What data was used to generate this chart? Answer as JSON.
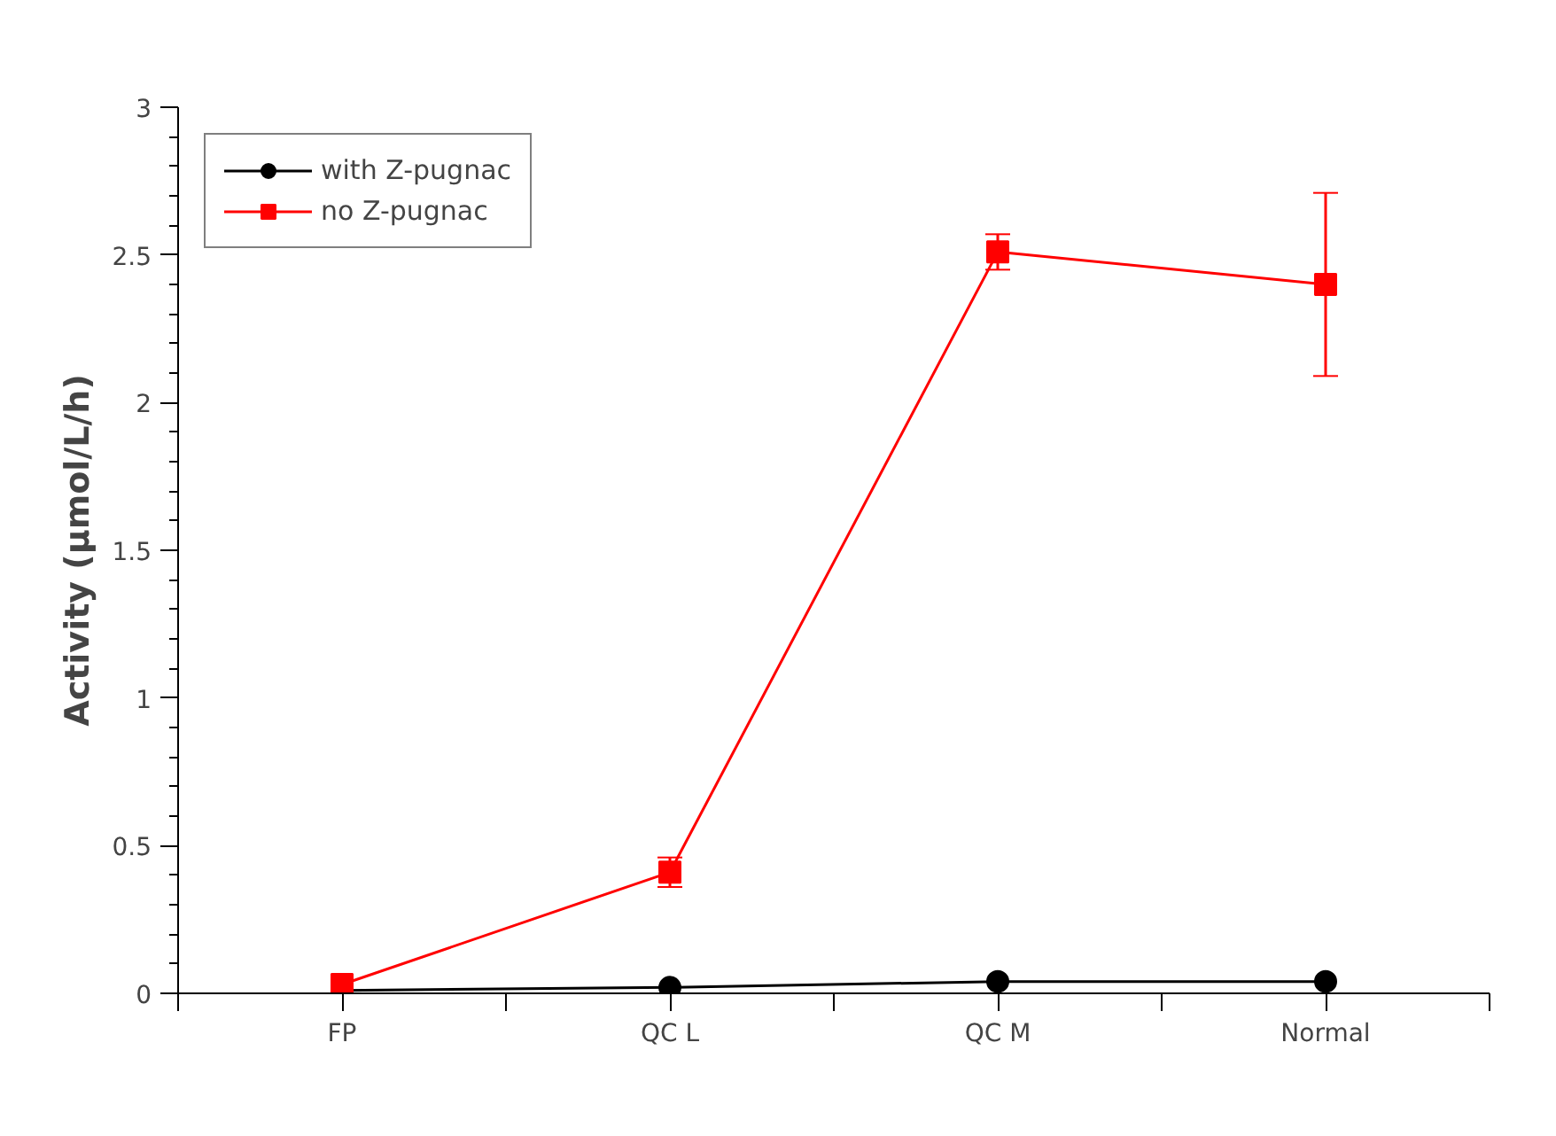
{
  "chart_data": {
    "type": "line",
    "ylabel": "Activity (µmol/L/h)",
    "categories": [
      "FP",
      "QC L",
      "QC M",
      "Normal"
    ],
    "series": [
      {
        "name": "with Z-pugnac",
        "color": "#000000",
        "marker": "circle",
        "values": [
          0.01,
          0.02,
          0.04,
          0.04
        ]
      },
      {
        "name": "no Z-pugnac",
        "color": "#ff0000",
        "marker": "square",
        "values": [
          0.03,
          0.41,
          2.51,
          2.4
        ],
        "errors": [
          null,
          0.05,
          0.06,
          0.31
        ]
      }
    ],
    "ylim": [
      0,
      3
    ],
    "yticks": [
      0,
      0.5,
      1,
      1.5,
      2,
      2.5,
      3
    ],
    "grid": false,
    "legend": "top left"
  }
}
